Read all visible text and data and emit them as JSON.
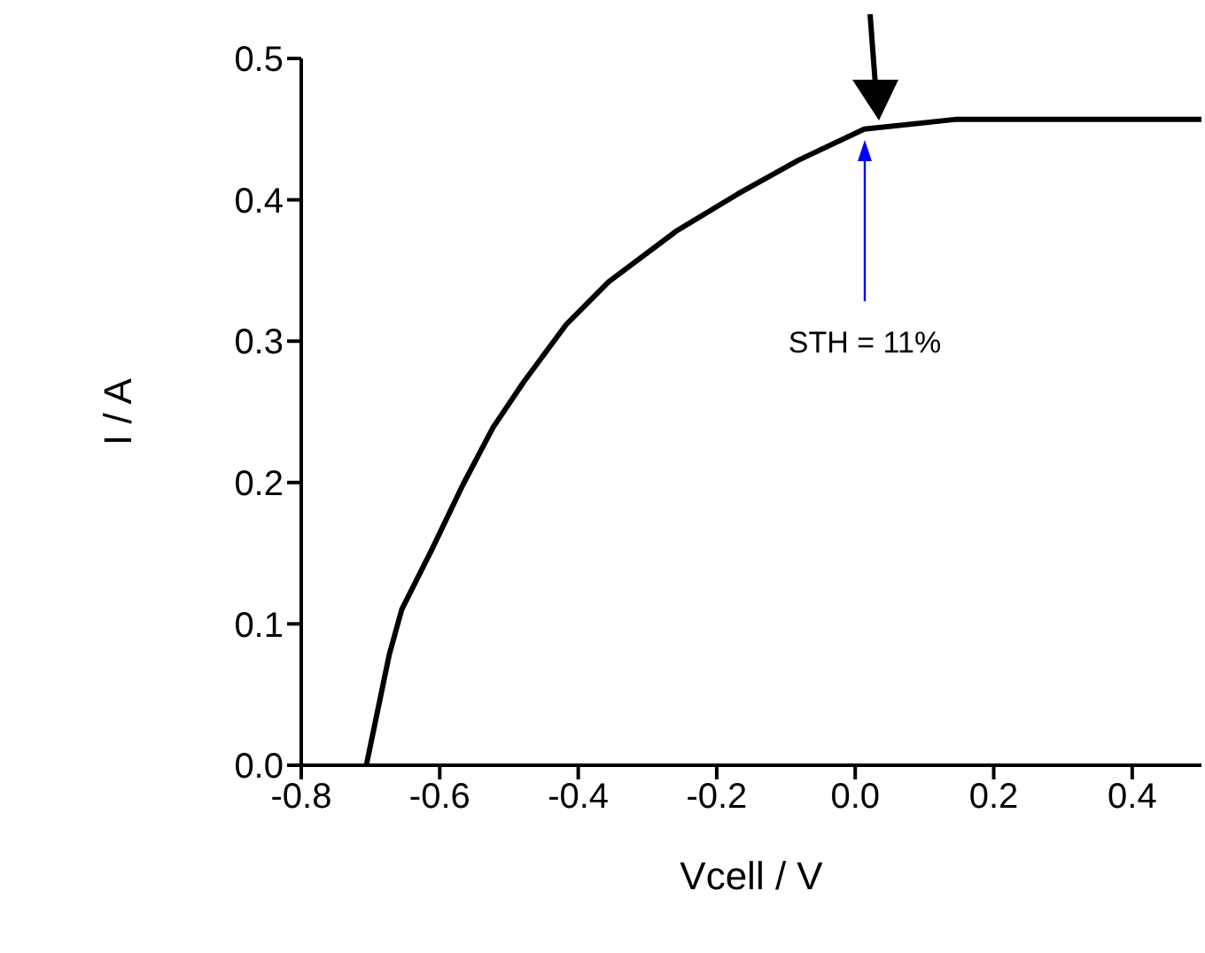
{
  "chart_data": {
    "type": "line",
    "xlabel": "Vcell / V",
    "ylabel": "I / A",
    "x": [
      -0.706,
      -0.673,
      -0.655,
      -0.611,
      -0.567,
      -0.523,
      -0.479,
      -0.417,
      -0.356,
      -0.258,
      -0.17,
      -0.082,
      0.013,
      0.147,
      0.5
    ],
    "series": [
      {
        "color": "#000000",
        "values": [
          0,
          0.078,
          0.11,
          0.153,
          0.198,
          0.239,
          0.271,
          0.312,
          0.342,
          0.378,
          0.404,
          0.428,
          0.45,
          0.457,
          0.457
        ]
      }
    ],
    "xlim": [
      -0.8,
      0.5
    ],
    "xticks": [
      -0.8,
      -0.6,
      -0.4,
      -0.2,
      {
        "value": 0,
        "label": "0.0"
      },
      0.2,
      0.4
    ],
    "ylim": [
      0,
      0.5
    ],
    "yticks": [
      {
        "value": 0,
        "label": "0.0"
      },
      0.1,
      0.2,
      0.3,
      0.4,
      0.5
    ],
    "annotations": [
      "STH = 11%"
    ],
    "grid": false,
    "legend": false,
    "marker": "none",
    "line_style": "solid"
  }
}
